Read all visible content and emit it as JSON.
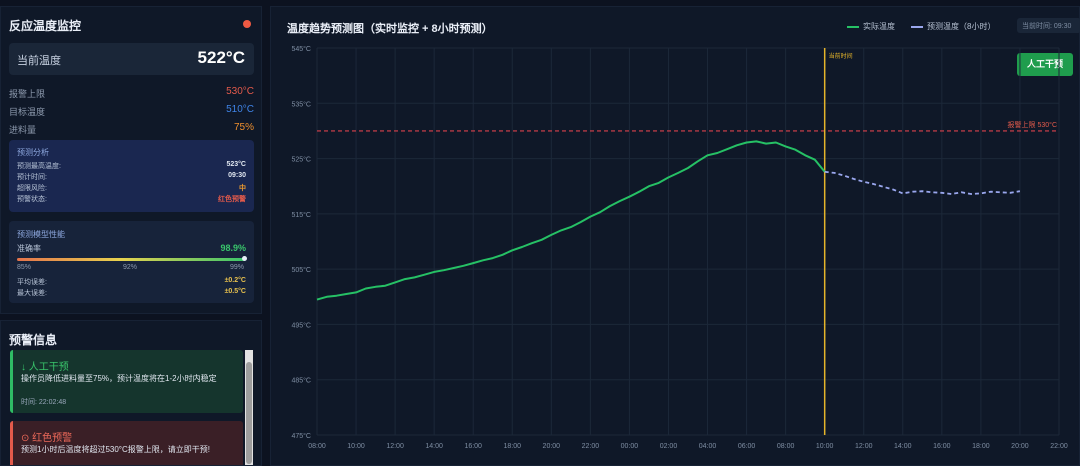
{
  "monitor": {
    "title": "反应温度监控",
    "current_label": "当前温度",
    "current_value": "522°C",
    "params": [
      {
        "label": "报警上限",
        "value": "530°C",
        "color": "#e35a4b"
      },
      {
        "label": "目标温度",
        "value": "510°C",
        "color": "#3f83e6"
      },
      {
        "label": "进料量",
        "value": "75%",
        "color": "#ee8f2e"
      }
    ]
  },
  "analysis": {
    "title": "预测分析",
    "rows": [
      {
        "label": "预测最高温度:",
        "value": "523°C",
        "color": "#e1e7f0"
      },
      {
        "label": "预计时间:",
        "value": "09:30",
        "color": "#e1e7f0"
      },
      {
        "label": "超限风险:",
        "value": "中",
        "color": "#ee9a2e"
      },
      {
        "label": "预警状态:",
        "value": "红色预警",
        "color": "#e35a4b"
      }
    ]
  },
  "model": {
    "title": "预测模型性能",
    "accuracy_label": "准确率",
    "accuracy_value": "98.9%",
    "accuracy": 0.989,
    "scale_labels": [
      "85%",
      "92%",
      "99%"
    ],
    "scale_min": 0.85,
    "scale_max": 0.99,
    "rows": [
      {
        "label": "平均误差:",
        "value": "±0.2°C"
      },
      {
        "label": "最大误差:",
        "value": "±0.5°C"
      }
    ]
  },
  "alerts": {
    "title": "预警信息",
    "items": [
      {
        "title": "↓ 人工干预",
        "body": "操作员降低进料量至75%，预计温度将在1-2小时内稳定",
        "time": "时间: 22:02:48",
        "type": "green"
      },
      {
        "title": "⊙ 红色预警",
        "body": "预测1小时后温度将超过530°C报警上限，请立即干预!",
        "time": "",
        "type": "red"
      }
    ]
  },
  "chart_header": {
    "title": "温度趋势预测图（实时监控 + 8小时预测）",
    "time_label": "当前时间: 09:30",
    "button_label": "人工干预"
  },
  "chart_data": {
    "type": "line",
    "title": "温度趋势预测图（实时监控 + 8小时预测）",
    "x_ticks": [
      "08:00",
      "10:00",
      "12:00",
      "14:00",
      "16:00",
      "18:00",
      "20:00",
      "22:00",
      "00:00",
      "02:00",
      "04:00",
      "06:00",
      "08:00",
      "10:00",
      "12:00",
      "14:00",
      "16:00",
      "18:00",
      "20:00",
      "22:00"
    ],
    "y_ticks": [
      "475°C",
      "485°C",
      "495°C",
      "505°C",
      "515°C",
      "525°C",
      "535°C",
      "545°C"
    ],
    "ylim": [
      475,
      545
    ],
    "xlim": [
      0,
      38
    ],
    "current_time_label": "当前时间",
    "current_time_x": 26,
    "alarm_label": "报警上限 530°C",
    "alarm_value": 530,
    "grid": true,
    "legend_position": "top-right",
    "series": [
      {
        "name": "实际温度",
        "color": "#26c165",
        "style": "solid",
        "x": [
          0,
          0.5,
          1,
          1.5,
          2,
          2.5,
          3,
          3.5,
          4,
          4.5,
          5,
          5.5,
          6,
          6.5,
          7,
          7.5,
          8,
          8.5,
          9,
          9.5,
          10,
          10.5,
          11,
          11.5,
          12,
          12.5,
          13,
          13.5,
          14,
          14.5,
          15,
          15.5,
          16,
          16.5,
          17,
          17.5,
          18,
          18.5,
          19,
          19.5,
          20,
          20.5,
          21,
          21.5,
          22,
          22.5,
          23,
          23.5,
          24,
          24.5,
          25,
          25.5,
          26
        ],
        "y": [
          499.5,
          500,
          500.2,
          500.5,
          500.8,
          501.5,
          501.8,
          502,
          502.6,
          503.2,
          503.5,
          504,
          504.5,
          504.8,
          505.2,
          505.6,
          506.1,
          506.6,
          507,
          507.6,
          508.4,
          509,
          509.7,
          510.3,
          511.2,
          512,
          512.6,
          513.5,
          514.5,
          515.3,
          516.4,
          517.3,
          518.1,
          519,
          520,
          520.6,
          521.6,
          522.4,
          523.3,
          524.5,
          525.6,
          526,
          526.7,
          527.4,
          527.9,
          528.1,
          527.7,
          527.9,
          527.2,
          526.6,
          525.6,
          524.8,
          522.6
        ]
      },
      {
        "name": "预测温度（8小时）",
        "color": "#9aa7ee",
        "style": "dashed",
        "x": [
          26,
          26.5,
          27,
          27.5,
          28,
          28.5,
          29,
          29.5,
          30,
          30.5,
          31,
          31.5,
          32,
          32.5,
          33,
          33.5,
          34,
          34.5,
          35,
          35.5,
          36
        ],
        "y": [
          522.6,
          522.4,
          521.9,
          521.3,
          520.8,
          520.4,
          519.9,
          519.4,
          518.7,
          519,
          519.1,
          518.9,
          518.8,
          518.6,
          518.9,
          518.6,
          518.7,
          519,
          518.9,
          518.8,
          519.1
        ]
      }
    ]
  }
}
